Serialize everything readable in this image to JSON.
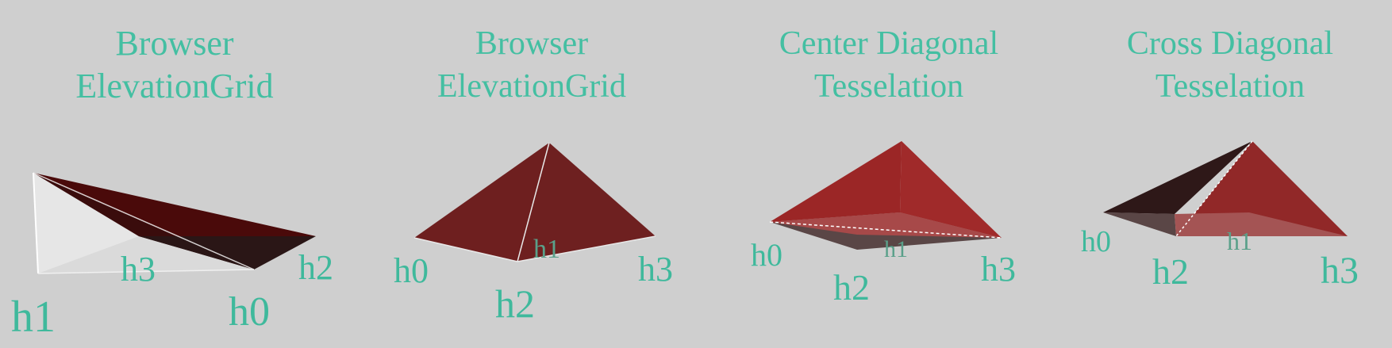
{
  "panels": [
    {
      "title_line1": "Browser",
      "title_line2": "ElevationGrid",
      "labels": {
        "h0": "h0",
        "h1": "h1",
        "h2": "h2",
        "h3": "h3"
      }
    },
    {
      "title_line1": "Browser",
      "title_line2": "ElevationGrid",
      "labels": {
        "h0": "h0",
        "h1": "h1",
        "h2": "h2",
        "h3": "h3"
      }
    },
    {
      "title_line1": "Center Diagonal",
      "title_line2": "Tesselation",
      "labels": {
        "h0": "h0",
        "h1": "h1",
        "h2": "h2",
        "h3": "h3"
      }
    },
    {
      "title_line1": "Cross Diagonal",
      "title_line2": "Tesselation",
      "labels": {
        "h0": "h0",
        "h1": "h1",
        "h2": "h2",
        "h3": "h3"
      }
    }
  ],
  "colors": {
    "background": "#cfcfcf",
    "text": "#44bfa2",
    "face_dark_red": "#4a0a0a",
    "face_red": "#9a2828",
    "face_maroon": "#6e1f1f",
    "face_gray": "#5a4a4a",
    "face_light": "#e6e6e6"
  }
}
